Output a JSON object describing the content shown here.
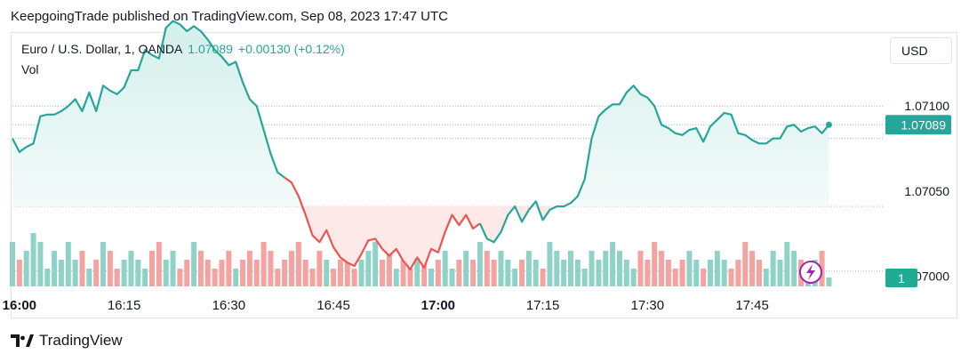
{
  "header": {
    "published": "KeepgoingTrade published on TradingView.com, Sep 08, 2023 17:47 UTC"
  },
  "legend": {
    "symbol": "Euro / U.S. Dollar, 1, OANDA",
    "price": "1.07089",
    "change": "+0.00130 (+0.12%)",
    "volume_label": "Vol"
  },
  "toolbar": {
    "currency": "USD"
  },
  "footer": {
    "brand": "TradingView"
  },
  "colors": {
    "up": "#26a69a",
    "down": "#ef5350",
    "vol_up": "#8fd3c8",
    "vol_down": "#f5a3a1",
    "area_up": "#e7f5f3",
    "area_down": "#fde9e8",
    "accent": "#9c27b0"
  },
  "icons": {
    "lightning": "lightning-icon",
    "logo": "tradingview-logo-icon"
  },
  "chart_data": {
    "type": "line",
    "title": "Euro / U.S. Dollar, 1, OANDA",
    "x_ticks": [
      "16:00",
      "16:15",
      "16:30",
      "16:45",
      "17:00",
      "17:15",
      "17:30",
      "17:45"
    ],
    "x_ticks_bold": [
      "16:00",
      "17:00"
    ],
    "y_ticks": [
      "1.07100",
      "1.07050",
      "1.07000"
    ],
    "ylim": [
      1.06994,
      1.07143
    ],
    "price_label": "1.07089",
    "volume_label": "1",
    "grid": false,
    "series": [
      {
        "name": "EURUSD",
        "x_start": "15:59",
        "interval_minutes": 1,
        "values": [
          1.07081,
          1.07073,
          1.07076,
          1.07078,
          1.07094,
          1.07095,
          1.07095,
          1.07097,
          1.071,
          1.07104,
          1.07097,
          1.07108,
          1.07097,
          1.07112,
          1.07109,
          1.07107,
          1.07111,
          1.07121,
          1.07121,
          1.07133,
          1.0713,
          1.07128,
          1.07146,
          1.0715,
          1.07148,
          1.07144,
          1.07147,
          1.07144,
          1.07139,
          1.07133,
          1.07129,
          1.07124,
          1.07126,
          1.07114,
          1.07104,
          1.071,
          1.07086,
          1.07072,
          1.07061,
          1.07058,
          1.07055,
          1.07047,
          1.07036,
          1.07024,
          1.0702,
          1.07027,
          1.07017,
          1.07011,
          1.07008,
          1.07006,
          1.07013,
          1.07021,
          1.07022,
          1.07016,
          1.07012,
          1.07016,
          1.07009,
          1.07004,
          1.07011,
          1.07005,
          1.07016,
          1.07014,
          1.07026,
          1.07036,
          1.0703,
          1.07036,
          1.07028,
          1.07031,
          1.07022,
          1.0702,
          1.07026,
          1.07036,
          1.07041,
          1.07032,
          1.07039,
          1.07044,
          1.07033,
          1.07039,
          1.07041,
          1.07041,
          1.07043,
          1.07047,
          1.07057,
          1.07081,
          1.07094,
          1.07098,
          1.07101,
          1.07101,
          1.07108,
          1.07112,
          1.07107,
          1.07105,
          1.071,
          1.07089,
          1.07087,
          1.07084,
          1.07083,
          1.07086,
          1.07087,
          1.07079,
          1.07088,
          1.07092,
          1.07096,
          1.07095,
          1.07084,
          1.07083,
          1.0708,
          1.07078,
          1.07078,
          1.07081,
          1.07081,
          1.07088,
          1.07089,
          1.07085,
          1.07087,
          1.07088,
          1.07084,
          1.07089
        ]
      }
    ],
    "down_range_indices": [
      39,
      67
    ],
    "volume": {
      "values": [
        5,
        3,
        4,
        6,
        5,
        2,
        4,
        3,
        5,
        3,
        4,
        2,
        3,
        5,
        4,
        2,
        3,
        4,
        3,
        2,
        4,
        5,
        3,
        4,
        2,
        3,
        5,
        4,
        3,
        2,
        3,
        4,
        2,
        3,
        4,
        3,
        5,
        4,
        2,
        3,
        4,
        5,
        3,
        2,
        4,
        3,
        2,
        3,
        4,
        2,
        3,
        4,
        5,
        3,
        4,
        2,
        3,
        2,
        4,
        3,
        2,
        3,
        4,
        2,
        3,
        4,
        3,
        5,
        4,
        3,
        4,
        3,
        2,
        3,
        4,
        3,
        2,
        5,
        4,
        3,
        4,
        3,
        2,
        4,
        3,
        4,
        5,
        4,
        3,
        2,
        4,
        3,
        5,
        4,
        3,
        2,
        3,
        4,
        3,
        2,
        3,
        4,
        3,
        2,
        3,
        5,
        4,
        3,
        2,
        4,
        3,
        5,
        4,
        3,
        2,
        3,
        4,
        1
      ],
      "ylim": [
        0,
        7
      ]
    }
  }
}
